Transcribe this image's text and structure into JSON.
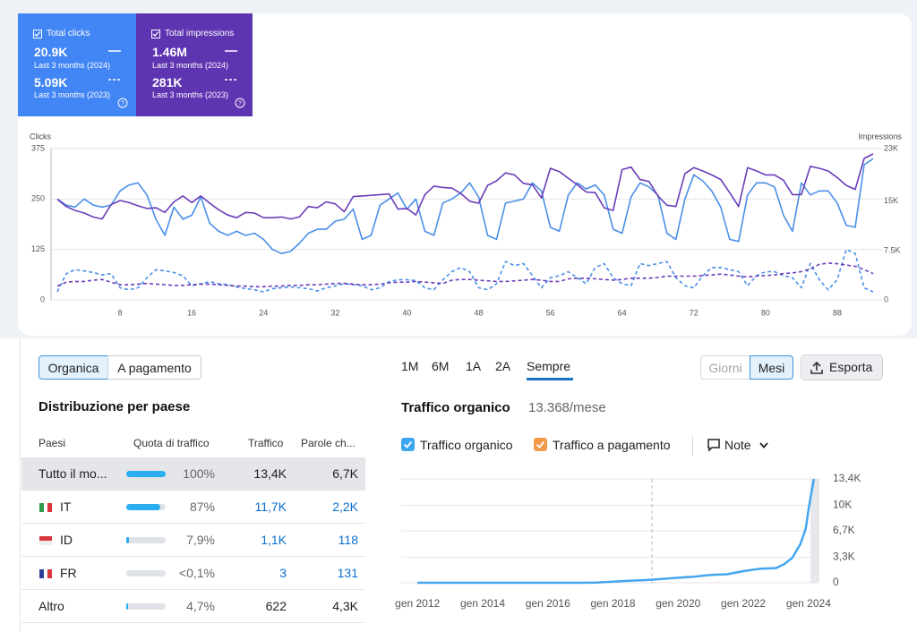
{
  "cards": [
    {
      "label": "Total clicks",
      "rows": [
        {
          "value": "20.9K",
          "period": "Last 3 months (2024)"
        },
        {
          "value": "5.09K",
          "period": "Last 3 months (2023)"
        }
      ]
    },
    {
      "label": "Total impressions",
      "rows": [
        {
          "value": "1.46M",
          "period": "Last 3 months (2024)"
        },
        {
          "value": "281K",
          "period": "Last 3 months (2023)"
        }
      ]
    }
  ],
  "controls": {
    "toggle": [
      "Organica",
      "A pagamento"
    ],
    "periods": [
      "1M",
      "6M",
      "1A",
      "2A",
      "Sempre"
    ],
    "granularity": [
      "Giorni",
      "Mesi"
    ],
    "export": "Esporta",
    "legend": [
      "Traffico organico",
      "Traffico a pagamento"
    ],
    "notes": "Note"
  },
  "country_table": {
    "title": "Distribuzione per paese",
    "columns": [
      "Paesi",
      "Quota di traffico",
      "Traffico",
      "Parole ch..."
    ],
    "rows": [
      {
        "country": "Tutto il mo...",
        "share": {
          "value": 100,
          "label": "100%"
        },
        "traffic": "13,4K",
        "keywords": "6,7K"
      },
      {
        "country": "IT",
        "share": {
          "value": 87,
          "label": "87%"
        },
        "traffic": "11,7K",
        "keywords": "2,2K"
      },
      {
        "country": "ID",
        "share": {
          "value": 7.9,
          "label": "7,9%"
        },
        "traffic": "1,1K",
        "keywords": "118"
      },
      {
        "country": "FR",
        "share": {
          "value": 0.1,
          "label": "<0,1%"
        },
        "traffic": "3",
        "keywords": "131"
      },
      {
        "country": "Altro",
        "share": {
          "value": 4.7,
          "label": "4,7%"
        },
        "traffic": "622",
        "keywords": "4,3K"
      }
    ]
  },
  "chart_data": [
    {
      "type": "line",
      "y_label": "Clicks",
      "y2_label": "Impressions",
      "grid": true,
      "x": [
        1,
        2,
        3,
        4,
        5,
        6,
        7,
        8,
        9,
        10,
        11,
        12,
        13,
        14,
        15,
        16,
        17,
        18,
        19,
        20,
        21,
        22,
        23,
        24,
        25,
        26,
        27,
        28,
        29,
        30,
        31,
        32,
        33,
        34,
        35,
        36,
        37,
        38,
        39,
        40,
        41,
        42,
        43,
        44,
        45,
        46,
        47,
        48,
        49,
        50,
        51,
        52,
        53,
        54,
        55,
        56,
        57,
        58,
        59,
        60,
        61,
        62,
        63,
        64,
        65,
        66,
        67,
        68,
        69,
        70,
        71,
        72,
        73,
        74,
        75,
        76,
        77,
        78,
        79,
        80,
        81,
        82,
        83,
        84,
        85,
        86,
        87,
        88,
        89,
        90,
        91,
        92
      ],
      "xlim": [
        0,
        93
      ],
      "xticks": [
        8,
        16,
        24,
        32,
        40,
        48,
        56,
        64,
        72,
        80,
        88
      ],
      "ylim": [
        0,
        375
      ],
      "yticks": [
        0,
        125,
        250,
        375
      ],
      "y2lim": [
        0,
        23000
      ],
      "y2ticks": [
        0,
        {
          "value": 7500,
          "label": "7.5K"
        },
        {
          "value": 15000,
          "label": "15K"
        },
        {
          "value": 23000,
          "label": "23K"
        }
      ],
      "series": [
        {
          "color": "#4a8fe7",
          "line_style": "solid",
          "values": [
            250,
            235,
            230,
            250,
            235,
            230,
            235,
            270,
            285,
            290,
            260,
            200,
            160,
            230,
            200,
            210,
            255,
            190,
            170,
            160,
            170,
            160,
            165,
            150,
            125,
            115,
            120,
            140,
            165,
            175,
            175,
            195,
            200,
            225,
            150,
            160,
            235,
            250,
            265,
            225,
            250,
            170,
            160,
            240,
            250,
            265,
            290,
            255,
            160,
            150,
            240,
            245,
            250,
            290,
            270,
            180,
            170,
            260,
            290,
            275,
            285,
            260,
            175,
            165,
            255,
            290,
            280,
            260,
            165,
            150,
            250,
            310,
            295,
            270,
            230,
            150,
            145,
            260,
            290,
            290,
            280,
            210,
            170,
            290,
            260,
            270,
            270,
            240,
            185,
            180,
            335,
            350
          ]
        },
        {
          "color": "#6a3db8",
          "line_style": "solid",
          "axis": "y2",
          "values": [
            15300,
            14200,
            13600,
            13200,
            12600,
            12300,
            14500,
            15100,
            14800,
            14300,
            13900,
            14000,
            13300,
            14900,
            15800,
            14800,
            15800,
            14700,
            13700,
            12900,
            12500,
            13300,
            13200,
            12500,
            12500,
            12600,
            12300,
            12600,
            14200,
            14000,
            14900,
            14600,
            13400,
            15700,
            15800,
            15900,
            16000,
            16100,
            13800,
            13900,
            12900,
            16000,
            17300,
            17100,
            17000,
            16200,
            15000,
            14700,
            17400,
            18100,
            19300,
            19000,
            17700,
            17500,
            15500,
            20000,
            19500,
            18500,
            17500,
            16400,
            16300,
            14000,
            13600,
            19800,
            20200,
            18300,
            18000,
            15800,
            14400,
            14200,
            19200,
            20100,
            19600,
            19000,
            18300,
            16300,
            14200,
            20100,
            19600,
            19000,
            19000,
            18200,
            16000,
            16000,
            20300,
            20000,
            19600,
            18600,
            17400,
            16800,
            21500,
            22200
          ]
        },
        {
          "color": "#4a8fe7",
          "line_style": "dashed",
          "values": [
            20,
            65,
            75,
            72,
            68,
            62,
            65,
            30,
            25,
            30,
            55,
            75,
            72,
            68,
            60,
            35,
            40,
            45,
            40,
            38,
            32,
            28,
            25,
            20,
            28,
            30,
            32,
            30,
            28,
            22,
            30,
            35,
            40,
            38,
            35,
            25,
            30,
            45,
            50,
            50,
            48,
            30,
            25,
            50,
            70,
            80,
            70,
            30,
            25,
            40,
            95,
            85,
            90,
            60,
            30,
            55,
            60,
            70,
            55,
            40,
            80,
            90,
            55,
            40,
            35,
            90,
            85,
            90,
            95,
            55,
            35,
            30,
            60,
            80,
            80,
            75,
            70,
            35,
            60,
            70,
            70,
            60,
            55,
            30,
            90,
            50,
            25,
            50,
            125,
            115,
            30,
            20
          ]
        },
        {
          "color": "#6a3db8",
          "line_style": "dashed",
          "axis": "y2",
          "values": [
            2100,
            2700,
            2800,
            2800,
            3000,
            3100,
            2700,
            2300,
            2300,
            2400,
            2500,
            2400,
            2300,
            2200,
            2200,
            2300,
            2400,
            2400,
            2300,
            2200,
            2100,
            2100,
            2000,
            2000,
            2100,
            2100,
            2200,
            2200,
            2300,
            2300,
            2400,
            2500,
            2500,
            2400,
            2300,
            2300,
            2400,
            2600,
            2700,
            2700,
            2800,
            2700,
            2600,
            2500,
            3000,
            3100,
            3100,
            3000,
            2900,
            2800,
            2800,
            2900,
            3000,
            3100,
            3000,
            2800,
            2800,
            3200,
            3300,
            3300,
            3200,
            3100,
            3000,
            3100,
            3300,
            3300,
            3300,
            3400,
            3600,
            3600,
            3600,
            3600,
            3700,
            3800,
            3900,
            3800,
            3600,
            3500,
            3600,
            3700,
            3800,
            4000,
            4100,
            4300,
            4700,
            5400,
            5600,
            5500,
            5300,
            5100,
            4600,
            4000
          ]
        }
      ]
    },
    {
      "type": "line",
      "title": "Traffico organico",
      "subtitle": "13.368/mese",
      "grid": true,
      "x": [
        "2012-01",
        "2013-01",
        "2014-01",
        "2015-01",
        "2016-01",
        "2017-01",
        "2017-07",
        "2018-01",
        "2018-07",
        "2019-01",
        "2019-07",
        "2020-01",
        "2020-07",
        "2021-01",
        "2021-07",
        "2022-01",
        "2022-07",
        "2023-01",
        "2023-04",
        "2023-07",
        "2023-10",
        "2023-12",
        "2024-01",
        "2024-02",
        "2024-03"
      ],
      "xlim": [
        "2011-07",
        "2024-05"
      ],
      "xticks": [
        {
          "value": "2012-01",
          "label": "gen 2012"
        },
        {
          "value": "2014-01",
          "label": "gen 2014"
        },
        {
          "value": "2016-01",
          "label": "gen 2016"
        },
        {
          "value": "2018-01",
          "label": "gen 2018"
        },
        {
          "value": "2020-01",
          "label": "gen 2020"
        },
        {
          "value": "2022-01",
          "label": "gen 2022"
        },
        {
          "value": "2024-01",
          "label": "gen 2024"
        }
      ],
      "ylim": [
        0,
        13400
      ],
      "yticks": [
        0,
        {
          "value": 3300,
          "label": "3,3K"
        },
        {
          "value": 6700,
          "label": "6,7K"
        },
        {
          "value": 10000,
          "label": "10K"
        },
        {
          "value": 13400,
          "label": "13,4K"
        }
      ],
      "series": [
        {
          "name": "Traffico organico",
          "color": "#45a6ef",
          "values": [
            0,
            0,
            0,
            0,
            0,
            0,
            20,
            150,
            250,
            350,
            500,
            650,
            800,
            1000,
            1100,
            1500,
            1800,
            1900,
            2400,
            3200,
            5000,
            7000,
            9500,
            11500,
            13400
          ]
        }
      ]
    }
  ]
}
